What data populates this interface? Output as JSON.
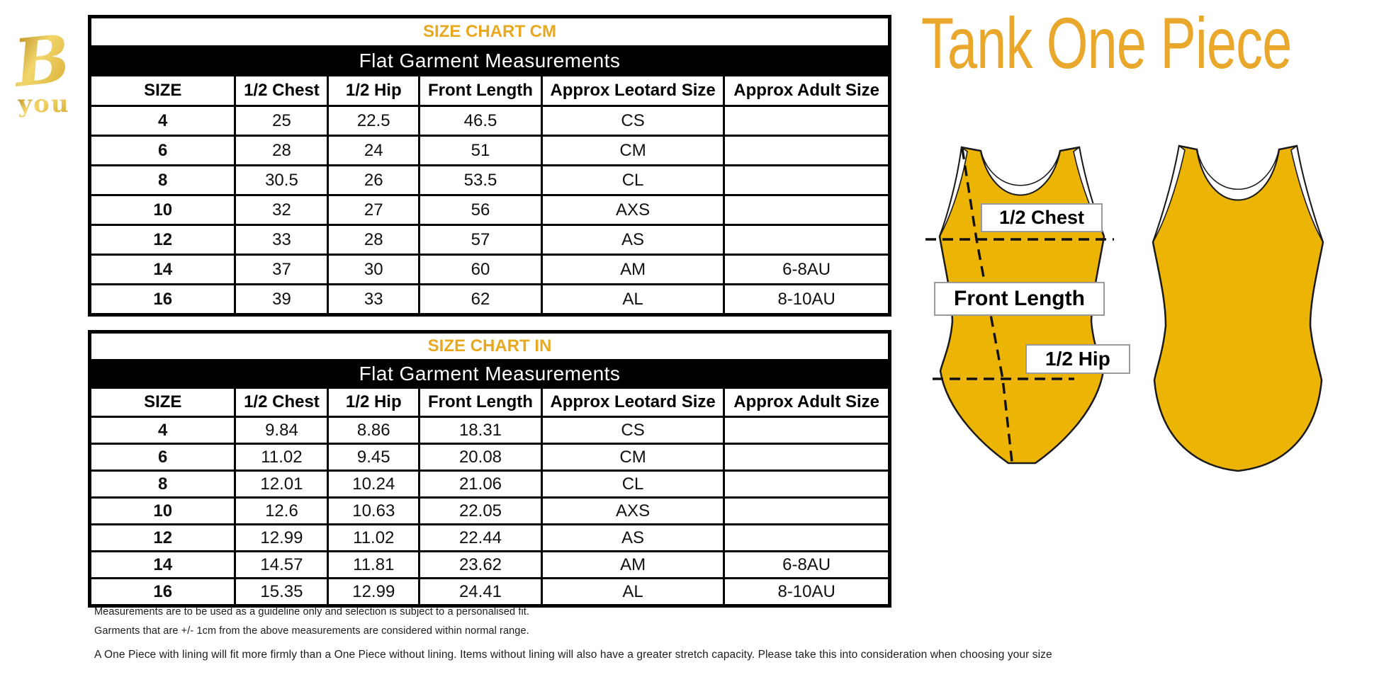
{
  "title": {
    "text": "Tank One Piece"
  },
  "logo": {
    "letter": "B",
    "word": "you"
  },
  "colors": {
    "garment_gold": "#ecb405",
    "title_gold": "#e9a82b",
    "table_header_gold": "#e8a81f",
    "logo_gold_dark": "#a8780e",
    "logo_gold_mid": "#d4a62a",
    "logo_gold_light": "#f2d66b"
  },
  "tables": [
    {
      "id": "cm",
      "title": "SIZE CHART CM",
      "subtitle": "Flat Garment Measurements",
      "columns": [
        "SIZE",
        "1/2 Chest",
        "1/2 Hip",
        "Front Length",
        "Approx Leotard Size",
        "Approx Adult Size"
      ],
      "rows": [
        [
          "4",
          "25",
          "22.5",
          "46.5",
          "CS",
          ""
        ],
        [
          "6",
          "28",
          "24",
          "51",
          "CM",
          ""
        ],
        [
          "8",
          "30.5",
          "26",
          "53.5",
          "CL",
          ""
        ],
        [
          "10",
          "32",
          "27",
          "56",
          "AXS",
          ""
        ],
        [
          "12",
          "33",
          "28",
          "57",
          "AS",
          ""
        ],
        [
          "14",
          "37",
          "30",
          "60",
          "AM",
          "6-8AU"
        ],
        [
          "16",
          "39",
          "33",
          "62",
          "AL",
          "8-10AU"
        ]
      ]
    },
    {
      "id": "in",
      "title": "SIZE CHART IN",
      "subtitle": "Flat Garment Measurements",
      "columns": [
        "SIZE",
        "1/2 Chest",
        "1/2 Hip",
        "Front Length",
        "Approx Leotard Size",
        "Approx Adult Size"
      ],
      "rows": [
        [
          "4",
          "9.84",
          "8.86",
          "18.31",
          "CS",
          ""
        ],
        [
          "6",
          "11.02",
          "9.45",
          "20.08",
          "CM",
          ""
        ],
        [
          "8",
          "12.01",
          "10.24",
          "21.06",
          "CL",
          ""
        ],
        [
          "10",
          "12.6",
          "10.63",
          "22.05",
          "AXS",
          ""
        ],
        [
          "12",
          "12.99",
          "11.02",
          "22.44",
          "AS",
          ""
        ],
        [
          "14",
          "14.57",
          "11.81",
          "23.62",
          "AM",
          "6-8AU"
        ],
        [
          "16",
          "15.35",
          "12.99",
          "24.41",
          "AL",
          "8-10AU"
        ]
      ]
    }
  ],
  "footnotes": [
    "Measurements are to be used as a guideline only and selection is subject to a personalised fit.",
    "Garments that are +/- 1cm from the above measurements are considered within normal range.",
    "A One Piece with lining will fit more firmly than a One Piece without lining.  Items without lining will also have a greater stretch capacity. Please take this into consideration when choosing your size"
  ],
  "diagram": {
    "labels": {
      "chest": "1/2 Chest",
      "front_length": "Front Length",
      "hip": "1/2 Hip"
    }
  }
}
